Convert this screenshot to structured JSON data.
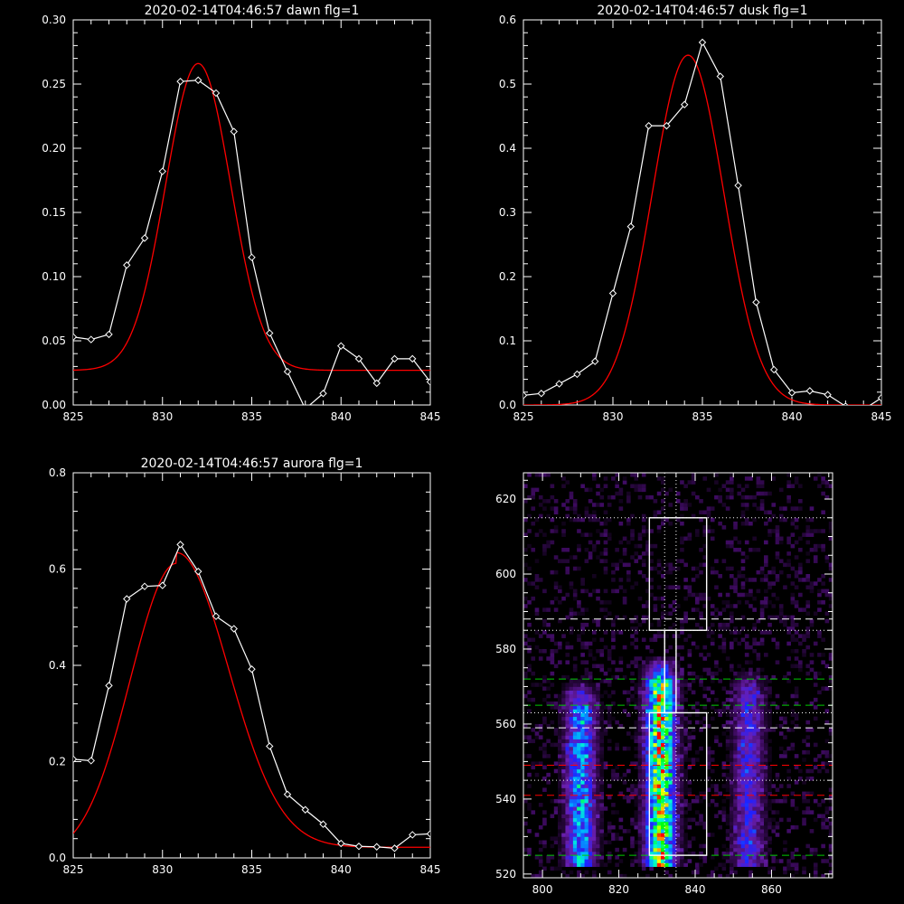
{
  "chart_data": [
    {
      "type": "line",
      "title": "2020-02-14T04:46:57 dawn flg=1",
      "xlim": [
        825,
        845
      ],
      "ylim": [
        0,
        0.3
      ],
      "xticks": [
        825,
        830,
        835,
        840,
        845
      ],
      "xtick_labels": [
        "825",
        "830",
        "835",
        "840",
        "845"
      ],
      "yticks": [
        0,
        0.05,
        0.1,
        0.15,
        0.2,
        0.25,
        0.3
      ],
      "ytick_labels": [
        "0.00",
        "0.05",
        "0.10",
        "0.15",
        "0.20",
        "0.25",
        "0.30"
      ],
      "series": [
        {
          "style": "data",
          "color": "#ffffff",
          "marker": "diamond",
          "x": [
            825,
            826,
            827,
            828,
            829,
            830,
            831,
            832,
            833,
            834,
            835,
            836,
            837,
            838,
            839,
            840,
            841,
            842,
            843,
            844,
            845
          ],
          "y": [
            0.053,
            0.051,
            0.055,
            0.109,
            0.13,
            0.182,
            0.252,
            0.253,
            0.243,
            0.213,
            0.115,
            0.056,
            0.026,
            -0.003,
            0.009,
            0.046,
            0.036,
            0.017,
            0.036,
            0.036,
            0.018
          ]
        },
        {
          "style": "fit",
          "color": "#ff0000",
          "fit": {
            "amplitude": 0.239,
            "center": 832.0,
            "sigma": 1.82,
            "baseline_left": 0.027,
            "baseline_right": 0.027
          }
        }
      ]
    },
    {
      "type": "line",
      "title": "2020-02-14T04:46:57 dusk flg=1",
      "xlim": [
        825,
        845
      ],
      "ylim": [
        0,
        0.6
      ],
      "xticks": [
        825,
        830,
        835,
        840,
        845
      ],
      "xtick_labels": [
        "825",
        "830",
        "835",
        "840",
        "845"
      ],
      "yticks": [
        0,
        0.1,
        0.2,
        0.3,
        0.4,
        0.5,
        0.6
      ],
      "ytick_labels": [
        "0.0",
        "0.1",
        "0.2",
        "0.3",
        "0.4",
        "0.5",
        "0.6"
      ],
      "series": [
        {
          "style": "data",
          "color": "#ffffff",
          "marker": "diamond",
          "x": [
            825,
            826,
            827,
            828,
            829,
            830,
            831,
            832,
            833,
            834,
            835,
            836,
            837,
            838,
            839,
            840,
            841,
            842,
            843,
            844,
            845
          ],
          "y": [
            0.015,
            0.018,
            0.033,
            0.048,
            0.068,
            0.174,
            0.278,
            0.435,
            0.435,
            0.468,
            0.565,
            0.512,
            0.342,
            0.16,
            0.055,
            0.019,
            0.022,
            0.016,
            -0.002,
            -0.007,
            0.011
          ]
        },
        {
          "style": "fit",
          "color": "#ff0000",
          "fit": {
            "amplitude": 0.545,
            "center": 834.2,
            "sigma": 2.0,
            "baseline_left": 0.0,
            "baseline_right": 0.0
          }
        }
      ]
    },
    {
      "type": "line",
      "title": "2020-02-14T04:46:57 aurora flg=1",
      "xlim": [
        825,
        845
      ],
      "ylim": [
        0,
        0.8
      ],
      "xticks": [
        825,
        830,
        835,
        840,
        845
      ],
      "xtick_labels": [
        "825",
        "830",
        "835",
        "840",
        "845"
      ],
      "yticks": [
        0,
        0.2,
        0.4,
        0.6,
        0.8
      ],
      "ytick_labels": [
        "0.0",
        "0.2",
        "0.4",
        "0.6",
        "0.8"
      ],
      "series": [
        {
          "style": "data",
          "color": "#ffffff",
          "marker": "diamond",
          "x": [
            825,
            826,
            827,
            828,
            829,
            830,
            831,
            832,
            833,
            834,
            835,
            836,
            837,
            838,
            839,
            840,
            841,
            842,
            843,
            844,
            845
          ],
          "y": [
            0.205,
            0.202,
            0.358,
            0.538,
            0.564,
            0.566,
            0.651,
            0.595,
            0.502,
            0.476,
            0.392,
            0.232,
            0.132,
            0.1,
            0.07,
            0.03,
            0.024,
            0.023,
            0.02,
            0.048,
            0.05
          ]
        },
        {
          "style": "fit",
          "color": "#ff0000",
          "fit": {
            "amplitude": 0.612,
            "center": 830.8,
            "sigma_left": 2.6,
            "sigma_right": 2.9,
            "baseline_left": 0.0,
            "baseline_right": 0.022
          }
        }
      ]
    },
    {
      "type": "heatmap",
      "xlim": [
        795,
        876
      ],
      "ylim": [
        519,
        627
      ],
      "xticks": [
        800,
        820,
        840,
        860
      ],
      "xtick_labels": [
        "800",
        "820",
        "840",
        "860"
      ],
      "yticks": [
        520,
        540,
        560,
        580,
        600,
        620
      ],
      "ytick_labels": [
        "520",
        "540",
        "560",
        "580",
        "600",
        "620"
      ],
      "colormap": [
        "#000000",
        "#3b0a5c",
        "#6a1fb0",
        "#2020ff",
        "#00aaff",
        "#00ffcc",
        "#00ff00",
        "#ffff00",
        "#ff0000"
      ],
      "emission_bands": [
        {
          "x_center": 810,
          "y_from": 522,
          "y_to": 572,
          "intensity": 0.55
        },
        {
          "x_center": 831,
          "y_from": 522,
          "y_to": 578,
          "intensity": 0.9
        },
        {
          "x_center": 854,
          "y_from": 522,
          "y_to": 575,
          "intensity": 0.35
        }
      ],
      "vertical_dotted_lines_x": [
        832,
        835
      ],
      "white_dotted_lines_y": [
        615,
        585,
        563,
        545
      ],
      "white_dashed_lines_y": [
        588,
        559
      ],
      "green_dashed_lines_y": [
        572,
        565,
        525
      ],
      "red_dashed_lines_y": [
        549,
        541
      ],
      "boxes": [
        {
          "x0": 828,
          "x1": 843,
          "y0": 585,
          "y1": 615
        },
        {
          "x0": 828,
          "x1": 843,
          "y0": 525,
          "y1": 563
        },
        {
          "x0": 832,
          "x1": 835,
          "y0": 563,
          "y1": 585
        }
      ]
    }
  ]
}
